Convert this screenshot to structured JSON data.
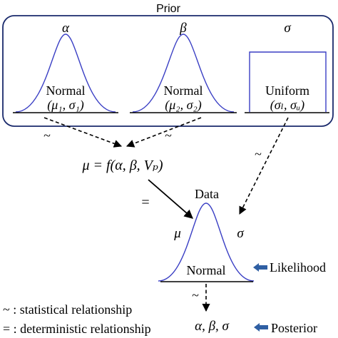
{
  "prior": {
    "title": "Prior",
    "params": [
      {
        "symbol": "α",
        "dist": "Normal",
        "args": "(μ₁, σ₁)"
      },
      {
        "symbol": "β",
        "dist": "Normal",
        "args": "(μ₂, σ₂)"
      },
      {
        "symbol": "σ",
        "dist": "Uniform",
        "args": "(σₗ, σᵤ)"
      }
    ]
  },
  "relation_symbols": {
    "statistical": "~",
    "deterministic": "="
  },
  "mu_equation": "μ = f(α, β, Vₚ)",
  "data": {
    "title": "Data",
    "left_param": "μ",
    "right_param": "σ",
    "dist": "Normal"
  },
  "likelihood_label": "Likelihood",
  "posterior": {
    "vars": "α, β, σ",
    "label": "Posterior"
  },
  "legend": {
    "statistical": "~ : statistical relationship",
    "deterministic": "= : deterministic relationship"
  },
  "colors": {
    "curve": "#3a3fc4",
    "arrow_label": "#2f5fa3",
    "box": "#1a2a6c"
  }
}
